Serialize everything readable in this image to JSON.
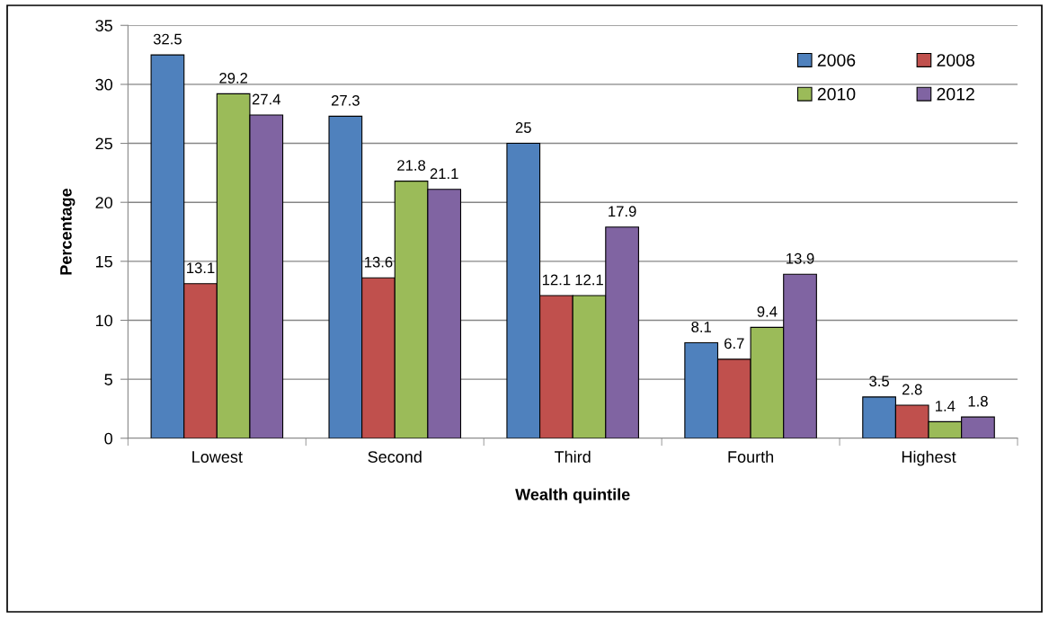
{
  "chart_data": {
    "type": "bar",
    "xlabel": "Wealth quintile",
    "ylabel": "Percentage",
    "categories": [
      "Lowest",
      "Second",
      "Third",
      "Fourth",
      "Highest"
    ],
    "series": [
      {
        "name": "2006",
        "color": "#4f81bd",
        "values": [
          32.5,
          27.3,
          25,
          8.1,
          3.5
        ]
      },
      {
        "name": "2008",
        "color": "#c0504d",
        "values": [
          13.1,
          13.6,
          12.1,
          6.7,
          2.8
        ]
      },
      {
        "name": "2010",
        "color": "#9bbb59",
        "values": [
          29.2,
          21.8,
          12.1,
          9.4,
          1.4
        ]
      },
      {
        "name": "2012",
        "color": "#8064a2",
        "values": [
          27.4,
          21.1,
          17.9,
          13.9,
          1.8
        ]
      }
    ],
    "ylim": [
      0,
      35
    ],
    "yticks": [
      0,
      5,
      10,
      15,
      20,
      25,
      30,
      35
    ],
    "grid": "y",
    "legend": "top right",
    "data_labels": true
  }
}
